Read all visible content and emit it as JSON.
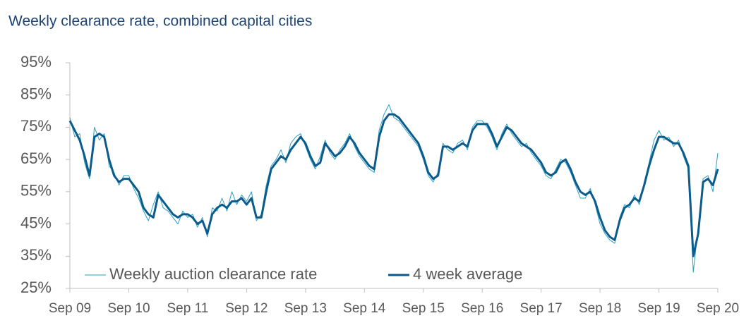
{
  "chart_data": {
    "type": "line",
    "title": "Weekly clearance rate, combined capital cities",
    "x": [
      "2009-09",
      "2009-10",
      "2009-11",
      "2009-12",
      "2010-01",
      "2010-02",
      "2010-03",
      "2010-04",
      "2010-05",
      "2010-06",
      "2010-07",
      "2010-08",
      "2010-09",
      "2010-10",
      "2010-11",
      "2010-12",
      "2011-01",
      "2011-02",
      "2011-03",
      "2011-04",
      "2011-05",
      "2011-06",
      "2011-07",
      "2011-08",
      "2011-09",
      "2011-10",
      "2011-11",
      "2011-12",
      "2012-01",
      "2012-02",
      "2012-03",
      "2012-04",
      "2012-05",
      "2012-06",
      "2012-07",
      "2012-08",
      "2012-09",
      "2012-10",
      "2012-11",
      "2012-12",
      "2013-01",
      "2013-02",
      "2013-03",
      "2013-04",
      "2013-05",
      "2013-06",
      "2013-07",
      "2013-08",
      "2013-09",
      "2013-10",
      "2013-11",
      "2013-12",
      "2014-01",
      "2014-02",
      "2014-03",
      "2014-04",
      "2014-05",
      "2014-06",
      "2014-07",
      "2014-08",
      "2014-09",
      "2014-10",
      "2014-11",
      "2014-12",
      "2015-01",
      "2015-02",
      "2015-03",
      "2015-04",
      "2015-05",
      "2015-06",
      "2015-07",
      "2015-08",
      "2015-09",
      "2015-10",
      "2015-11",
      "2015-12",
      "2016-01",
      "2016-02",
      "2016-03",
      "2016-04",
      "2016-05",
      "2016-06",
      "2016-07",
      "2016-08",
      "2016-09",
      "2016-10",
      "2016-11",
      "2016-12",
      "2017-01",
      "2017-02",
      "2017-03",
      "2017-04",
      "2017-05",
      "2017-06",
      "2017-07",
      "2017-08",
      "2017-09",
      "2017-10",
      "2017-11",
      "2017-12",
      "2018-01",
      "2018-02",
      "2018-03",
      "2018-04",
      "2018-05",
      "2018-06",
      "2018-07",
      "2018-08",
      "2018-09",
      "2018-10",
      "2018-11",
      "2018-12",
      "2019-01",
      "2019-02",
      "2019-03",
      "2019-04",
      "2019-05",
      "2019-06",
      "2019-07",
      "2019-08",
      "2019-09",
      "2019-10",
      "2019-11",
      "2019-12",
      "2020-01",
      "2020-02",
      "2020-03",
      "2020-04",
      "2020-05",
      "2020-06",
      "2020-07",
      "2020-08",
      "2020-09"
    ],
    "series": [
      {
        "name": "Weekly auction clearance rate",
        "color": "#2a9fc2",
        "width": 1,
        "values": [
          78,
          72,
          73,
          64,
          59,
          75,
          71,
          73,
          63,
          61,
          57,
          60,
          60,
          56,
          53,
          49,
          46,
          51,
          55,
          50,
          49,
          47,
          45,
          49,
          47,
          48,
          44,
          47,
          41,
          50,
          49,
          53,
          49,
          55,
          51,
          54,
          52,
          55,
          46,
          48,
          57,
          63,
          65,
          68,
          64,
          70,
          72,
          73,
          69,
          65,
          62,
          66,
          71,
          67,
          65,
          68,
          70,
          73,
          69,
          66,
          64,
          62,
          61,
          74,
          79,
          82,
          78,
          77,
          75,
          73,
          71,
          69,
          65,
          60,
          58,
          61,
          70,
          68,
          67,
          70,
          71,
          68,
          75,
          77,
          77,
          75,
          72,
          68,
          73,
          76,
          73,
          71,
          69,
          70,
          67,
          65,
          63,
          60,
          59,
          62,
          65,
          64,
          61,
          57,
          53,
          53,
          56,
          51,
          45,
          42,
          40,
          39,
          47,
          51,
          50,
          54,
          51,
          58,
          64,
          71,
          74,
          71,
          72,
          69,
          71,
          66,
          62,
          30,
          44,
          59,
          60,
          55,
          67
        ]
      },
      {
        "name": "4 week average",
        "color": "#0b5b8c",
        "width": 3,
        "values": [
          77,
          74,
          71,
          66,
          60,
          72,
          73,
          72,
          65,
          60,
          58,
          59,
          59,
          57,
          55,
          50,
          48,
          47,
          54,
          52,
          50,
          48,
          47,
          48,
          48,
          47,
          45,
          46,
          42,
          48,
          50,
          51,
          50,
          52,
          52,
          53,
          51,
          53,
          47,
          47,
          55,
          62,
          64,
          66,
          65,
          68,
          70,
          72,
          70,
          66,
          63,
          64,
          70,
          68,
          66,
          67,
          69,
          72,
          70,
          67,
          65,
          63,
          62,
          72,
          77,
          79,
          79,
          78,
          76,
          74,
          72,
          70,
          66,
          61,
          59,
          60,
          69,
          69,
          68,
          69,
          70,
          69,
          74,
          76,
          76,
          76,
          73,
          69,
          72,
          75,
          74,
          72,
          70,
          69,
          68,
          66,
          64,
          61,
          60,
          61,
          64,
          65,
          62,
          58,
          55,
          54,
          55,
          52,
          47,
          43,
          41,
          40,
          46,
          50,
          51,
          53,
          52,
          57,
          63,
          68,
          72,
          72,
          71,
          70,
          70,
          67,
          63,
          35,
          42,
          58,
          59,
          57,
          62
        ]
      }
    ],
    "xlim": [
      "2009-09",
      "2020-09"
    ],
    "xticks": [
      {
        "value": "2009-09",
        "label": "Sep 09"
      },
      {
        "value": "2010-09",
        "label": "Sep 10"
      },
      {
        "value": "2011-09",
        "label": "Sep 11"
      },
      {
        "value": "2012-09",
        "label": "Sep 12"
      },
      {
        "value": "2013-09",
        "label": "Sep 13"
      },
      {
        "value": "2014-09",
        "label": "Sep 14"
      },
      {
        "value": "2015-09",
        "label": "Sep 15"
      },
      {
        "value": "2016-09",
        "label": "Sep 16"
      },
      {
        "value": "2017-09",
        "label": "Sep 17"
      },
      {
        "value": "2018-09",
        "label": "Sep 18"
      },
      {
        "value": "2019-09",
        "label": "Sep 19"
      },
      {
        "value": "2020-09",
        "label": "Sep 20"
      }
    ],
    "ylim": [
      25,
      95
    ],
    "yticks": [
      {
        "value": 25,
        "label": "25%"
      },
      {
        "value": 35,
        "label": "35%"
      },
      {
        "value": 45,
        "label": "45%"
      },
      {
        "value": 55,
        "label": "55%"
      },
      {
        "value": 65,
        "label": "65%"
      },
      {
        "value": 75,
        "label": "75%"
      },
      {
        "value": 85,
        "label": "85%"
      },
      {
        "value": 95,
        "label": "95%"
      }
    ],
    "grid": false,
    "legend": "bottom-left"
  }
}
